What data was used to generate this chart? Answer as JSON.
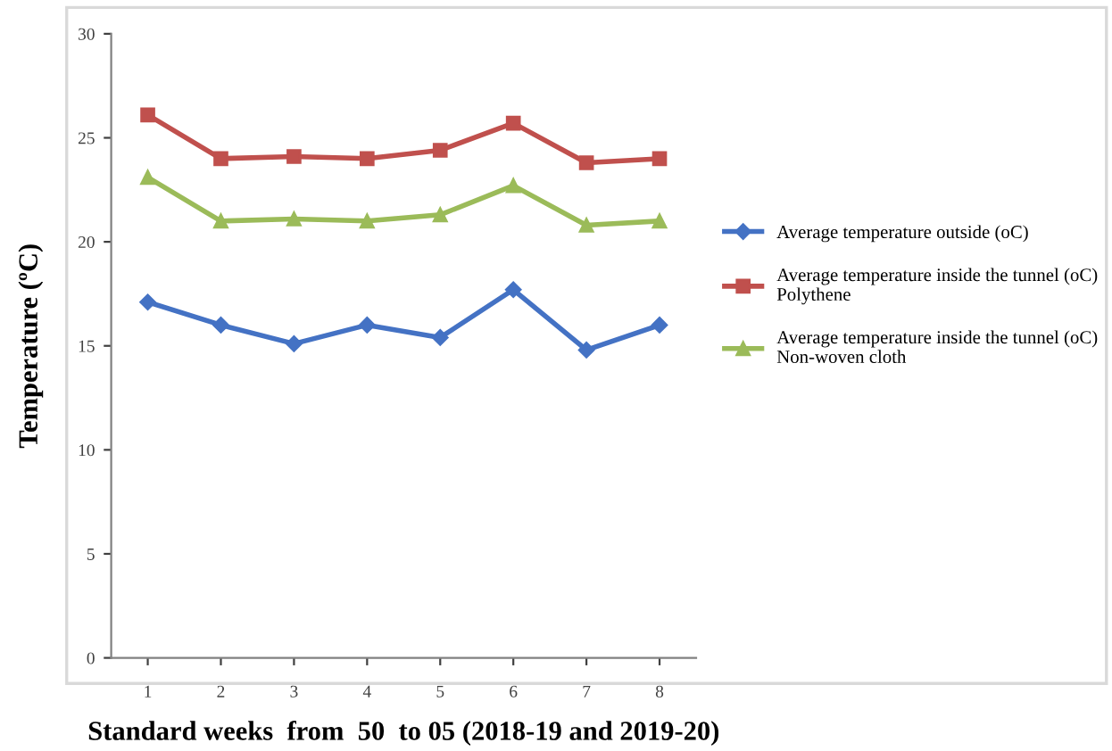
{
  "chart_data": {
    "type": "line",
    "xlabel": "Standard weeks  from  50  to 05 (2018-19 and 2019-20)",
    "ylabel": "Temperature (ºC)",
    "categories": [
      "1",
      "2",
      "3",
      "4",
      "5",
      "6",
      "7",
      "8"
    ],
    "series": [
      {
        "name": "Average temperature outside (oC)",
        "color": "#4472c4",
        "marker": "diamond",
        "values": [
          17.1,
          16.0,
          15.1,
          16.0,
          15.4,
          17.7,
          14.8,
          16.0
        ]
      },
      {
        "name": "Average temperature inside the tunnel (oC)\nPolythene",
        "color": "#c0504d",
        "marker": "square",
        "values": [
          26.1,
          24.0,
          24.1,
          24.0,
          24.4,
          25.7,
          23.8,
          24.0
        ]
      },
      {
        "name": "Average temperature inside the tunnel (oC)\nNon-woven cloth",
        "color": "#9bbb59",
        "marker": "triangle",
        "values": [
          23.1,
          21.0,
          21.1,
          21.0,
          21.3,
          22.7,
          20.8,
          21.0
        ]
      }
    ],
    "ylim": [
      0,
      30
    ],
    "yticks": [
      0,
      5,
      10,
      15,
      20,
      25,
      30
    ],
    "grid": false,
    "legend": "right",
    "line_style": "solid"
  }
}
